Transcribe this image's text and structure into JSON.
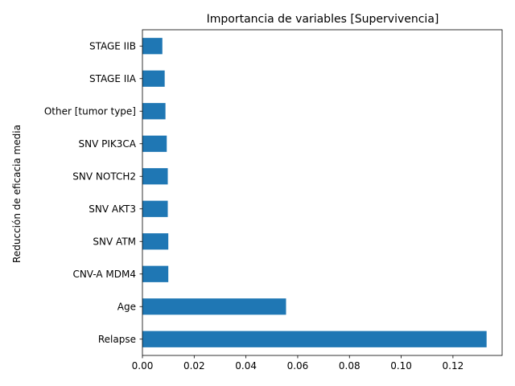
{
  "chart_data": {
    "type": "bar",
    "orientation": "horizontal",
    "title": "Importancia de variables [Supervivencia]",
    "xlabel": "",
    "ylabel": "Reducción de eficacia media",
    "categories": [
      "Relapse",
      "Age",
      "CNV-A MDM4",
      "SNV ATM",
      "SNV AKT3",
      "SNV NOTCH2",
      "SNV PIK3CA",
      "Other [tumor type]",
      "STAGE IIA",
      "STAGE IIB"
    ],
    "values": [
      0.133,
      0.0555,
      0.01,
      0.01,
      0.0098,
      0.0098,
      0.0094,
      0.0089,
      0.0086,
      0.0077
    ],
    "xlim": [
      0,
      0.139
    ],
    "xticks": [
      0.0,
      0.02,
      0.04,
      0.06,
      0.08,
      0.1,
      0.12
    ],
    "xtick_labels": [
      "0.00",
      "0.02",
      "0.04",
      "0.06",
      "0.08",
      "0.10",
      "0.12"
    ],
    "bar_color": "#1f77b4",
    "grid": false,
    "legend": "none"
  }
}
